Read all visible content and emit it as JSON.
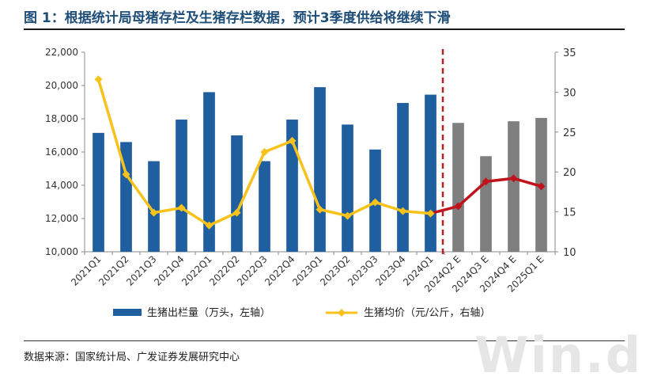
{
  "figure": {
    "title": "图 1：根据统计局母猪存栏及生猪存栏数据，预计3季度供给将继续下滑",
    "source": "数据来源：国家统计局、广发证券发展研究中心",
    "watermark": "Win.d"
  },
  "chart_data": {
    "type": "bar",
    "categories": [
      "2021Q1",
      "2021Q2",
      "2021Q3",
      "2021Q4",
      "2022Q1",
      "2022Q2",
      "2022Q3",
      "2022Q4",
      "2023Q1",
      "2023Q2",
      "2023Q3",
      "2023Q4",
      "2024Q1",
      "2024Q2 E",
      "2024Q3 E",
      "2024Q4 E",
      "2025Q1 E"
    ],
    "forecast_start_index": 13,
    "series": [
      {
        "name": "生猪出栏量（万头，左轴）",
        "kind": "bar",
        "axis": "left",
        "color": "#1f5fa0",
        "forecast_color": "#7f7f7f",
        "values": [
          17150,
          16600,
          15450,
          17950,
          19600,
          17000,
          15450,
          17950,
          19900,
          17650,
          16150,
          18950,
          19450,
          17750,
          15750,
          17850,
          18050
        ]
      },
      {
        "name": "生猪均价（元/公斤，右轴）",
        "kind": "line",
        "axis": "right",
        "color": "#f7c21b",
        "forecast_color": "#c0141c",
        "values": [
          31.6,
          19.7,
          14.9,
          15.5,
          13.3,
          14.9,
          22.5,
          23.9,
          15.3,
          14.5,
          16.2,
          15.1,
          14.8,
          15.7,
          18.8,
          19.2,
          18.2
        ]
      }
    ],
    "y_left": {
      "min": 10000,
      "max": 22000,
      "step": 2000,
      "ticks": [
        "10,000",
        "12,000",
        "14,000",
        "16,000",
        "18,000",
        "20,000",
        "22,000"
      ]
    },
    "y_right": {
      "min": 10,
      "max": 35,
      "step": 5,
      "ticks": [
        "10",
        "15",
        "20",
        "25",
        "30",
        "35"
      ]
    },
    "grid": false,
    "legend_position": "bottom",
    "forecast_divider_color": "#b22222"
  }
}
